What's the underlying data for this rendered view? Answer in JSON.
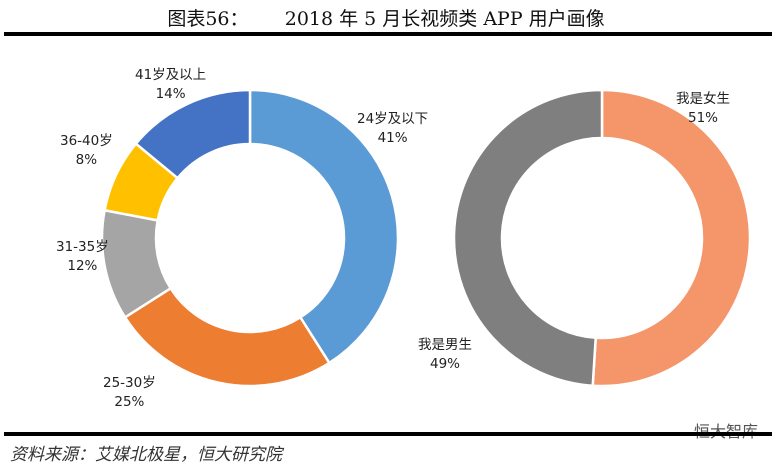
{
  "title": "图表56：      2018 年 5 月长视频类 APP 用户画像",
  "source": "资料来源：艾媒北极星，恒大研究院",
  "watermark": "恒大智库",
  "chart_data": [
    {
      "type": "pie",
      "variant": "donut",
      "categories": [
        "24岁及以下",
        "25-30岁",
        "31-35岁",
        "36-40岁",
        "41岁及以上"
      ],
      "values": [
        41,
        25,
        12,
        8,
        14
      ],
      "labels": [
        "41%",
        "25%",
        "12%",
        "8%",
        "14%"
      ],
      "colors": [
        "#5B9BD5",
        "#ED7D31",
        "#A5A5A5",
        "#FFC000",
        "#4472C4"
      ]
    },
    {
      "type": "pie",
      "variant": "donut",
      "categories": [
        "我是女生",
        "我是男生"
      ],
      "values": [
        51,
        49
      ],
      "labels": [
        "51%",
        "49%"
      ],
      "colors": [
        "#F4956A",
        "#7F7F7F"
      ]
    }
  ]
}
